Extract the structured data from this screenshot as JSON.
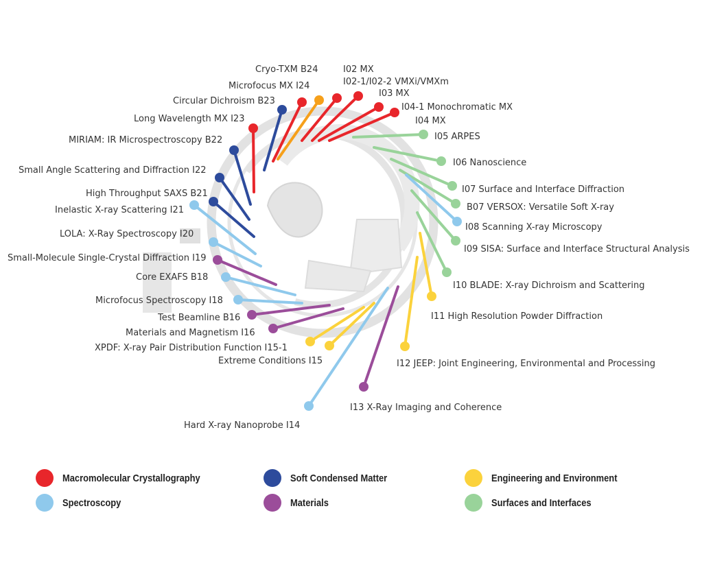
{
  "colors": {
    "macromolecular": "#e8262b",
    "soft": "#2d4b9c",
    "engineering": "#fbd23c",
    "spectroscopy": "#8fc9ec",
    "materials": "#9b4d9a",
    "surfaces": "#99d39a",
    "cryo": "#f6a01b",
    "ring": "#dddddd"
  },
  "beamlines": [
    {
      "label": "Cryo-TXM B24",
      "category": "cryo"
    },
    {
      "label": "I02 MX",
      "category": "macromolecular"
    },
    {
      "label": "I02-1/I02-2 VMXi/VMXm",
      "category": "macromolecular"
    },
    {
      "label": "Microfocus MX I24",
      "category": "macromolecular"
    },
    {
      "label": "I03 MX",
      "category": "macromolecular"
    },
    {
      "label": "Circular Dichroism B23",
      "category": "soft"
    },
    {
      "label": "I04-1 Monochromatic MX",
      "category": "macromolecular"
    },
    {
      "label": "I04 MX",
      "category": "macromolecular"
    },
    {
      "label": "Long Wavelength MX I23",
      "category": "macromolecular"
    },
    {
      "label": "I05 ARPES",
      "category": "surfaces"
    },
    {
      "label": "MIRIAM: IR Microspectroscopy B22",
      "category": "soft"
    },
    {
      "label": "I06 Nanoscience",
      "category": "surfaces"
    },
    {
      "label": "Small Angle Scattering and  Diffraction I22",
      "category": "soft"
    },
    {
      "label": "I07 Surface and Interface Diffraction",
      "category": "surfaces"
    },
    {
      "label": "High Throughput SAXS B21",
      "category": "soft"
    },
    {
      "label": "B07 VERSOX: Versatile Soft X-ray",
      "category": "surfaces"
    },
    {
      "label": "Inelastic X-ray Scattering I21",
      "category": "spectroscopy"
    },
    {
      "label": "I08 Scanning X-ray Microscopy",
      "category": "spectroscopy"
    },
    {
      "label": "LOLA: X-Ray Spectroscopy I20",
      "category": "spectroscopy"
    },
    {
      "label": "I09 SISA: Surface and Interface Structural Analysis",
      "category": "surfaces"
    },
    {
      "label": "Small-Molecule Single-Crystal Diffraction I19",
      "category": "materials"
    },
    {
      "label": "Core EXAFS B18",
      "category": "spectroscopy"
    },
    {
      "label": "I10 BLADE: X-ray Dichroism and Scattering",
      "category": "surfaces"
    },
    {
      "label": "Microfocus Spectroscopy I18",
      "category": "spectroscopy"
    },
    {
      "label": "I11 High Resolution Powder Diffraction",
      "category": "engineering"
    },
    {
      "label": "Test Beamline B16",
      "category": "materials"
    },
    {
      "label": "Materials and Magnetism I16",
      "category": "materials"
    },
    {
      "label": "XPDF: X-ray Pair Distribution Function I15-1",
      "category": "engineering"
    },
    {
      "label": "I12 JEEP: Joint Engineering, Environmental and Processing",
      "category": "engineering"
    },
    {
      "label": "Extreme Conditions I15",
      "category": "engineering"
    },
    {
      "label": "I13 X-Ray Imaging and Coherence",
      "category": "materials"
    },
    {
      "label": "Hard X-ray Nanoprobe I14",
      "category": "spectroscopy"
    }
  ],
  "legend": [
    {
      "label": "Macromolecular Crystallography",
      "category": "macromolecular"
    },
    {
      "label": "Soft Condensed Matter",
      "category": "soft"
    },
    {
      "label": "Engineering and Environment",
      "category": "engineering"
    },
    {
      "label": "Spectroscopy",
      "category": "spectroscopy"
    },
    {
      "label": "Materials",
      "category": "materials"
    },
    {
      "label": "Surfaces and Interfaces",
      "category": "surfaces"
    }
  ]
}
